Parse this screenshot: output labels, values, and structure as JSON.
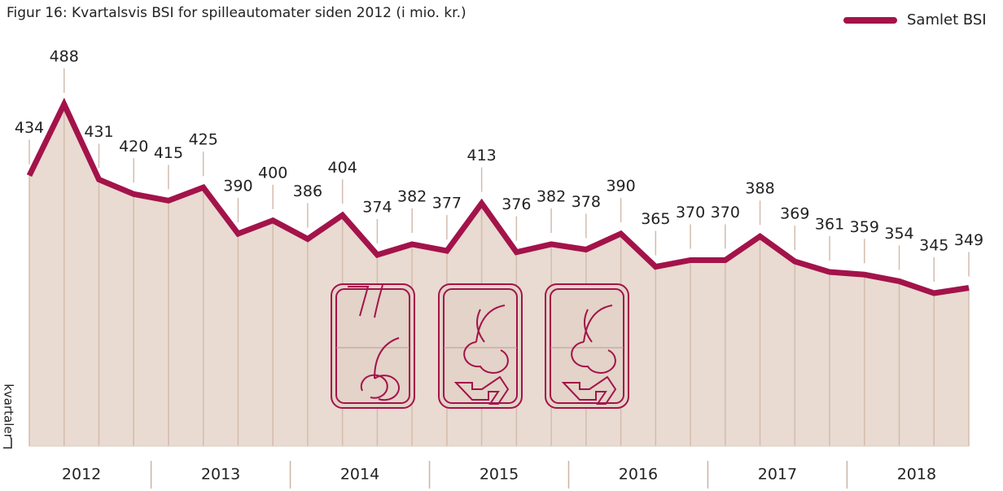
{
  "chart_data": {
    "type": "line",
    "title": "Figur 16: Kvartalsvis BSI for spilleautomater siden 2012 (i mio. kr.)",
    "y_label": "kvartaler",
    "years": [
      "2012",
      "2013",
      "2014",
      "2015",
      "2016",
      "2017",
      "2018"
    ],
    "series": [
      {
        "name": "Samlet BSI",
        "color": "#a3134a",
        "values": [
          434,
          488,
          431,
          420,
          415,
          425,
          390,
          400,
          386,
          404,
          374,
          382,
          377,
          413,
          376,
          382,
          378,
          390,
          365,
          370,
          370,
          388,
          369,
          361,
          359,
          354,
          345,
          349
        ]
      }
    ],
    "area_color": "#e9dbd1",
    "legend": "top-right"
  }
}
